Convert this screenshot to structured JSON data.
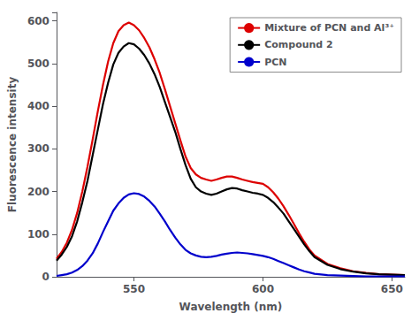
{
  "chart_data": {
    "type": "line",
    "title": "",
    "xlabel": "Wavelength (nm)",
    "ylabel": "Fluorescence intensity",
    "xlim": [
      520,
      655
    ],
    "ylim": [
      0,
      620
    ],
    "xticks": [
      550,
      600,
      650
    ],
    "yticks": [
      0,
      100,
      200,
      300,
      400,
      500,
      600
    ],
    "grid": false,
    "legend": "upper right",
    "x": [
      520,
      522,
      524,
      526,
      528,
      530,
      532,
      534,
      536,
      538,
      540,
      542,
      544,
      546,
      548,
      550,
      552,
      554,
      556,
      558,
      560,
      562,
      564,
      566,
      568,
      570,
      572,
      574,
      576,
      578,
      580,
      582,
      584,
      586,
      588,
      590,
      592,
      594,
      596,
      598,
      600,
      602,
      604,
      606,
      608,
      610,
      612,
      614,
      616,
      618,
      620,
      625,
      630,
      635,
      640,
      645,
      650,
      655
    ],
    "series": [
      {
        "name": "Mixture of PCN and Al³⁺",
        "color": "#dd0000",
        "values": [
          42,
          58,
          80,
          110,
          150,
          200,
          258,
          322,
          388,
          450,
          505,
          548,
          576,
          590,
          596,
          590,
          578,
          560,
          538,
          510,
          478,
          440,
          400,
          360,
          320,
          282,
          255,
          240,
          232,
          228,
          225,
          228,
          232,
          235,
          235,
          232,
          228,
          225,
          222,
          220,
          218,
          210,
          198,
          183,
          165,
          145,
          124,
          102,
          82,
          64,
          50,
          30,
          20,
          13,
          9,
          6,
          5,
          4
        ]
      },
      {
        "name": "Compound 2",
        "color": "#000000",
        "values": [
          38,
          52,
          70,
          95,
          130,
          175,
          225,
          285,
          345,
          405,
          455,
          498,
          525,
          540,
          548,
          545,
          535,
          520,
          500,
          475,
          445,
          410,
          375,
          340,
          300,
          262,
          230,
          210,
          200,
          195,
          192,
          195,
          200,
          205,
          208,
          207,
          203,
          200,
          197,
          195,
          192,
          185,
          175,
          162,
          148,
          130,
          112,
          94,
          76,
          60,
          46,
          28,
          18,
          12,
          8,
          6,
          5,
          4
        ]
      },
      {
        "name": "PCN",
        "color": "#0000cc",
        "values": [
          2,
          4,
          6,
          10,
          16,
          25,
          38,
          55,
          78,
          105,
          130,
          155,
          172,
          185,
          193,
          196,
          194,
          188,
          178,
          165,
          148,
          130,
          110,
          92,
          76,
          63,
          55,
          50,
          47,
          46,
          47,
          49,
          52,
          54,
          56,
          57,
          56,
          55,
          53,
          51,
          49,
          46,
          42,
          37,
          32,
          27,
          22,
          17,
          13,
          10,
          7,
          4,
          3,
          2,
          1,
          1,
          1,
          1
        ]
      }
    ]
  }
}
